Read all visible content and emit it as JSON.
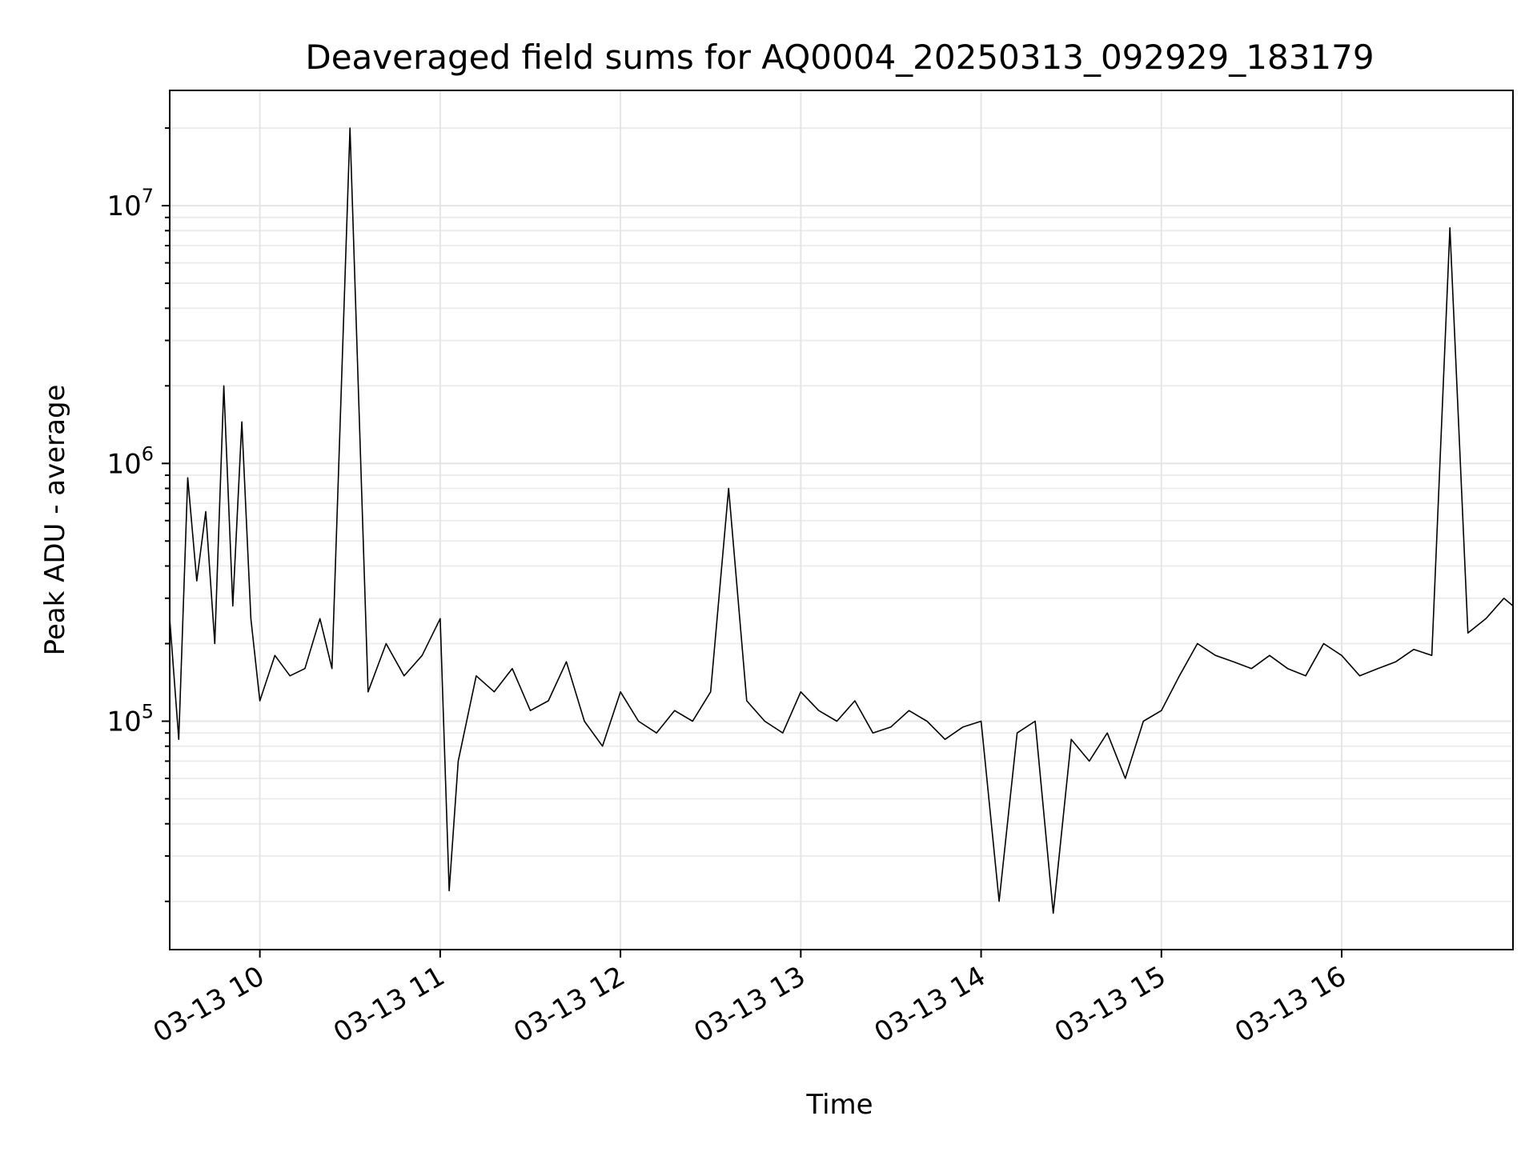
{
  "chart_data": {
    "type": "line",
    "title": "Deaveraged field sums for AQ0004_20250313_092929_183179",
    "xlabel": "Time",
    "ylabel": "Peak ADU - average",
    "y_scale": "log",
    "x_tick_labels": [
      "03-13 10",
      "03-13 11",
      "03-13 12",
      "03-13 13",
      "03-13 14",
      "03-13 15",
      "03-13 16"
    ],
    "y_tick_labels": [
      {
        "base": "10",
        "exp": "5"
      },
      {
        "base": "10",
        "exp": "6"
      },
      {
        "base": "10",
        "exp": "7"
      }
    ],
    "xlim": [
      "2025-03-13 09:30",
      "2025-03-13 16:57"
    ],
    "ylim": [
      13000,
      28000000
    ],
    "grid": "major-and-minor",
    "line_color": "#000000",
    "series": [
      {
        "x": [
          "2025-03-13 09:30",
          "2025-03-13 09:33",
          "2025-03-13 09:36",
          "2025-03-13 09:39",
          "2025-03-13 09:42",
          "2025-03-13 09:45",
          "2025-03-13 09:48",
          "2025-03-13 09:51",
          "2025-03-13 09:54",
          "2025-03-13 09:57",
          "2025-03-13 10:00",
          "2025-03-13 10:05",
          "2025-03-13 10:10",
          "2025-03-13 10:15",
          "2025-03-13 10:20",
          "2025-03-13 10:24",
          "2025-03-13 10:30",
          "2025-03-13 10:36",
          "2025-03-13 10:42",
          "2025-03-13 10:48",
          "2025-03-13 10:54",
          "2025-03-13 11:00",
          "2025-03-13 11:03",
          "2025-03-13 11:06",
          "2025-03-13 11:12",
          "2025-03-13 11:18",
          "2025-03-13 11:24",
          "2025-03-13 11:30",
          "2025-03-13 11:36",
          "2025-03-13 11:42",
          "2025-03-13 11:48",
          "2025-03-13 11:54",
          "2025-03-13 12:00",
          "2025-03-13 12:06",
          "2025-03-13 12:12",
          "2025-03-13 12:18",
          "2025-03-13 12:24",
          "2025-03-13 12:30",
          "2025-03-13 12:36",
          "2025-03-13 12:42",
          "2025-03-13 12:48",
          "2025-03-13 12:54",
          "2025-03-13 13:00",
          "2025-03-13 13:06",
          "2025-03-13 13:12",
          "2025-03-13 13:18",
          "2025-03-13 13:24",
          "2025-03-13 13:30",
          "2025-03-13 13:36",
          "2025-03-13 13:42",
          "2025-03-13 13:48",
          "2025-03-13 13:54",
          "2025-03-13 14:00",
          "2025-03-13 14:06",
          "2025-03-13 14:12",
          "2025-03-13 14:18",
          "2025-03-13 14:24",
          "2025-03-13 14:30",
          "2025-03-13 14:36",
          "2025-03-13 14:42",
          "2025-03-13 14:48",
          "2025-03-13 14:54",
          "2025-03-13 15:00",
          "2025-03-13 15:06",
          "2025-03-13 15:12",
          "2025-03-13 15:18",
          "2025-03-13 15:24",
          "2025-03-13 15:30",
          "2025-03-13 15:36",
          "2025-03-13 15:42",
          "2025-03-13 15:48",
          "2025-03-13 15:54",
          "2025-03-13 16:00",
          "2025-03-13 16:06",
          "2025-03-13 16:12",
          "2025-03-13 16:18",
          "2025-03-13 16:24",
          "2025-03-13 16:30",
          "2025-03-13 16:36",
          "2025-03-13 16:42",
          "2025-03-13 16:48",
          "2025-03-13 16:54",
          "2025-03-13 16:57"
        ],
        "values": [
          250000,
          85000,
          880000,
          350000,
          650000,
          200000,
          2000000,
          280000,
          1450000,
          250000,
          120000,
          180000,
          150000,
          160000,
          250000,
          160000,
          20000000,
          130000,
          200000,
          150000,
          180000,
          250000,
          22000,
          70000,
          150000,
          130000,
          160000,
          110000,
          120000,
          170000,
          100000,
          80000,
          130000,
          100000,
          90000,
          110000,
          100000,
          130000,
          800000,
          120000,
          100000,
          90000,
          130000,
          110000,
          100000,
          120000,
          90000,
          95000,
          110000,
          100000,
          85000,
          95000,
          100000,
          20000,
          90000,
          100000,
          18000,
          85000,
          70000,
          90000,
          60000,
          100000,
          110000,
          150000,
          200000,
          180000,
          170000,
          160000,
          180000,
          160000,
          150000,
          200000,
          180000,
          150000,
          160000,
          170000,
          190000,
          180000,
          8200000,
          220000,
          250000,
          300000,
          280000
        ]
      }
    ]
  }
}
